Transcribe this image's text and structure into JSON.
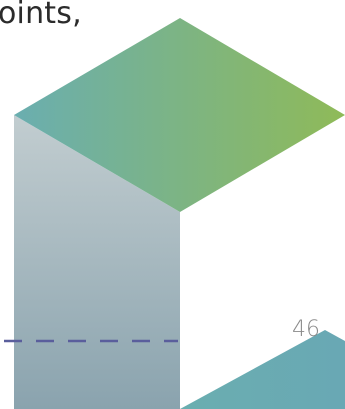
{
  "caption": {
    "text": "oints,"
  },
  "page_number": "46",
  "colors": {
    "top_face_start": "#6aaeb0",
    "top_face_end": "#8fba58",
    "side_face_top": "#c2cdd0",
    "side_face_bottom": "#8aa3ae",
    "bottom_shape_start": "#6aaeb0",
    "bottom_shape_end": "#69a8b4",
    "dashed_line": "#5a5e9c"
  }
}
